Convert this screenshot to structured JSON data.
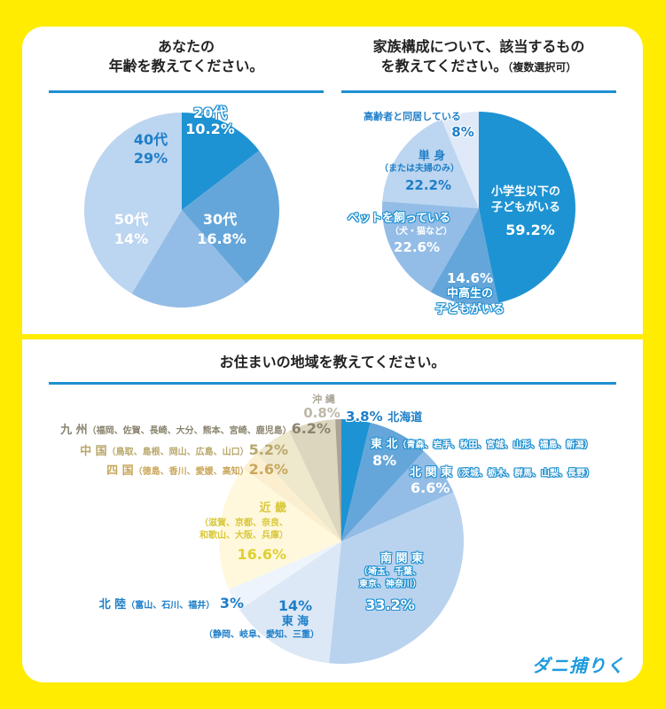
{
  "brand": {
    "logo_text": "ダニ捕りくん"
  },
  "chart_data": [
    {
      "type": "pie",
      "title_line1": "あなたの",
      "title_line2": "年齢を教えてください。",
      "slices": [
        {
          "label": "20代",
          "value": 10.2,
          "value_label": "10.2%",
          "color": "#1e93d3"
        },
        {
          "label": "30代",
          "value": 16.8,
          "value_label": "16.8%",
          "color": "#65a6da"
        },
        {
          "label": "50代",
          "value": 14,
          "value_label": "14%",
          "color": "#93bde6"
        },
        {
          "label": "40代",
          "value": 29,
          "value_label": "29%",
          "color": "#bcd5f0"
        }
      ]
    },
    {
      "type": "pie",
      "title_line1": "家族構成について、該当するもの",
      "title_line2": "を教えてください。",
      "title_note": "（複数選択可）",
      "slices": [
        {
          "label": "小学生以下の",
          "label2": "子どもがいる",
          "value": 59.2,
          "value_label": "59.2%",
          "color": "#1e93d3"
        },
        {
          "label": "中高生の",
          "label2": "子どもがいる",
          "value": 14.6,
          "value_label": "14.6%",
          "color": "#65a6da"
        },
        {
          "label": "ペットを飼っている",
          "sublabel": "（犬・猫など）",
          "value": 22.6,
          "value_label": "22.6%",
          "color": "#93bde6"
        },
        {
          "label": "単 身",
          "sublabel": "（または夫婦のみ）",
          "value": 22.2,
          "value_label": "22.2%",
          "color": "#bcd5f0"
        },
        {
          "label": "高齢者と同居している",
          "value": 8,
          "value_label": "8%",
          "color": "#dfe9f7"
        }
      ]
    },
    {
      "type": "pie",
      "title": "お住まいの地域を教えてください。",
      "slices": [
        {
          "label": "北海道",
          "value": 3.8,
          "value_label": "3.8%",
          "color": "#1e93d3"
        },
        {
          "label": "東 北",
          "sublabel": "（青森、岩手、秋田、宮城、山形、福島、新潟）",
          "value": 8,
          "value_label": "8%",
          "color": "#65a6da"
        },
        {
          "label": "北 関 東",
          "sublabel": "（茨城、栃木、群馬、山梨、長野）",
          "value": 6.6,
          "value_label": "6.6%",
          "color": "#93bde6"
        },
        {
          "label": "南 関 東",
          "sublabel": "（埼玉、千葉、",
          "sublabel2": "東京、神奈川）",
          "value": 33.2,
          "value_label": "33.2%",
          "color": "#b9d3ef"
        },
        {
          "label": "東 海",
          "sublabel": "（静岡、岐阜、愛知、三重）",
          "value": 14,
          "value_label": "14%",
          "color": "#dce8f6"
        },
        {
          "label": "北 陸",
          "sublabel": "（富山、石川、福井）",
          "value": 3,
          "value_label": "3%",
          "color": "#eef4fb"
        },
        {
          "label": "近 畿",
          "sublabel": "（滋賀、京都、奈良、",
          "sublabel2": "和歌山、大阪、兵庫）",
          "value": 16.6,
          "value_label": "16.6%",
          "color": "#fff8dc"
        },
        {
          "label": "四 国",
          "sublabel": "（徳島、香川、愛媛、高知）",
          "value": 2.6,
          "value_label": "2.6%",
          "color": "#fbefcf"
        },
        {
          "label": "中 国",
          "sublabel": "（鳥取、島根、岡山、広島、山口）",
          "value": 5.2,
          "value_label": "5.2%",
          "color": "#eee8cd"
        },
        {
          "label": "九 州",
          "sublabel": "（福岡、佐賀、長崎、大分、熊本、宮崎、鹿児島）",
          "value": 6.2,
          "value_label": "6.2%",
          "color": "#dcd6bf"
        },
        {
          "label": "沖 縄",
          "value": 0.8,
          "value_label": "0.8%",
          "color": "#aaa496"
        }
      ]
    }
  ]
}
